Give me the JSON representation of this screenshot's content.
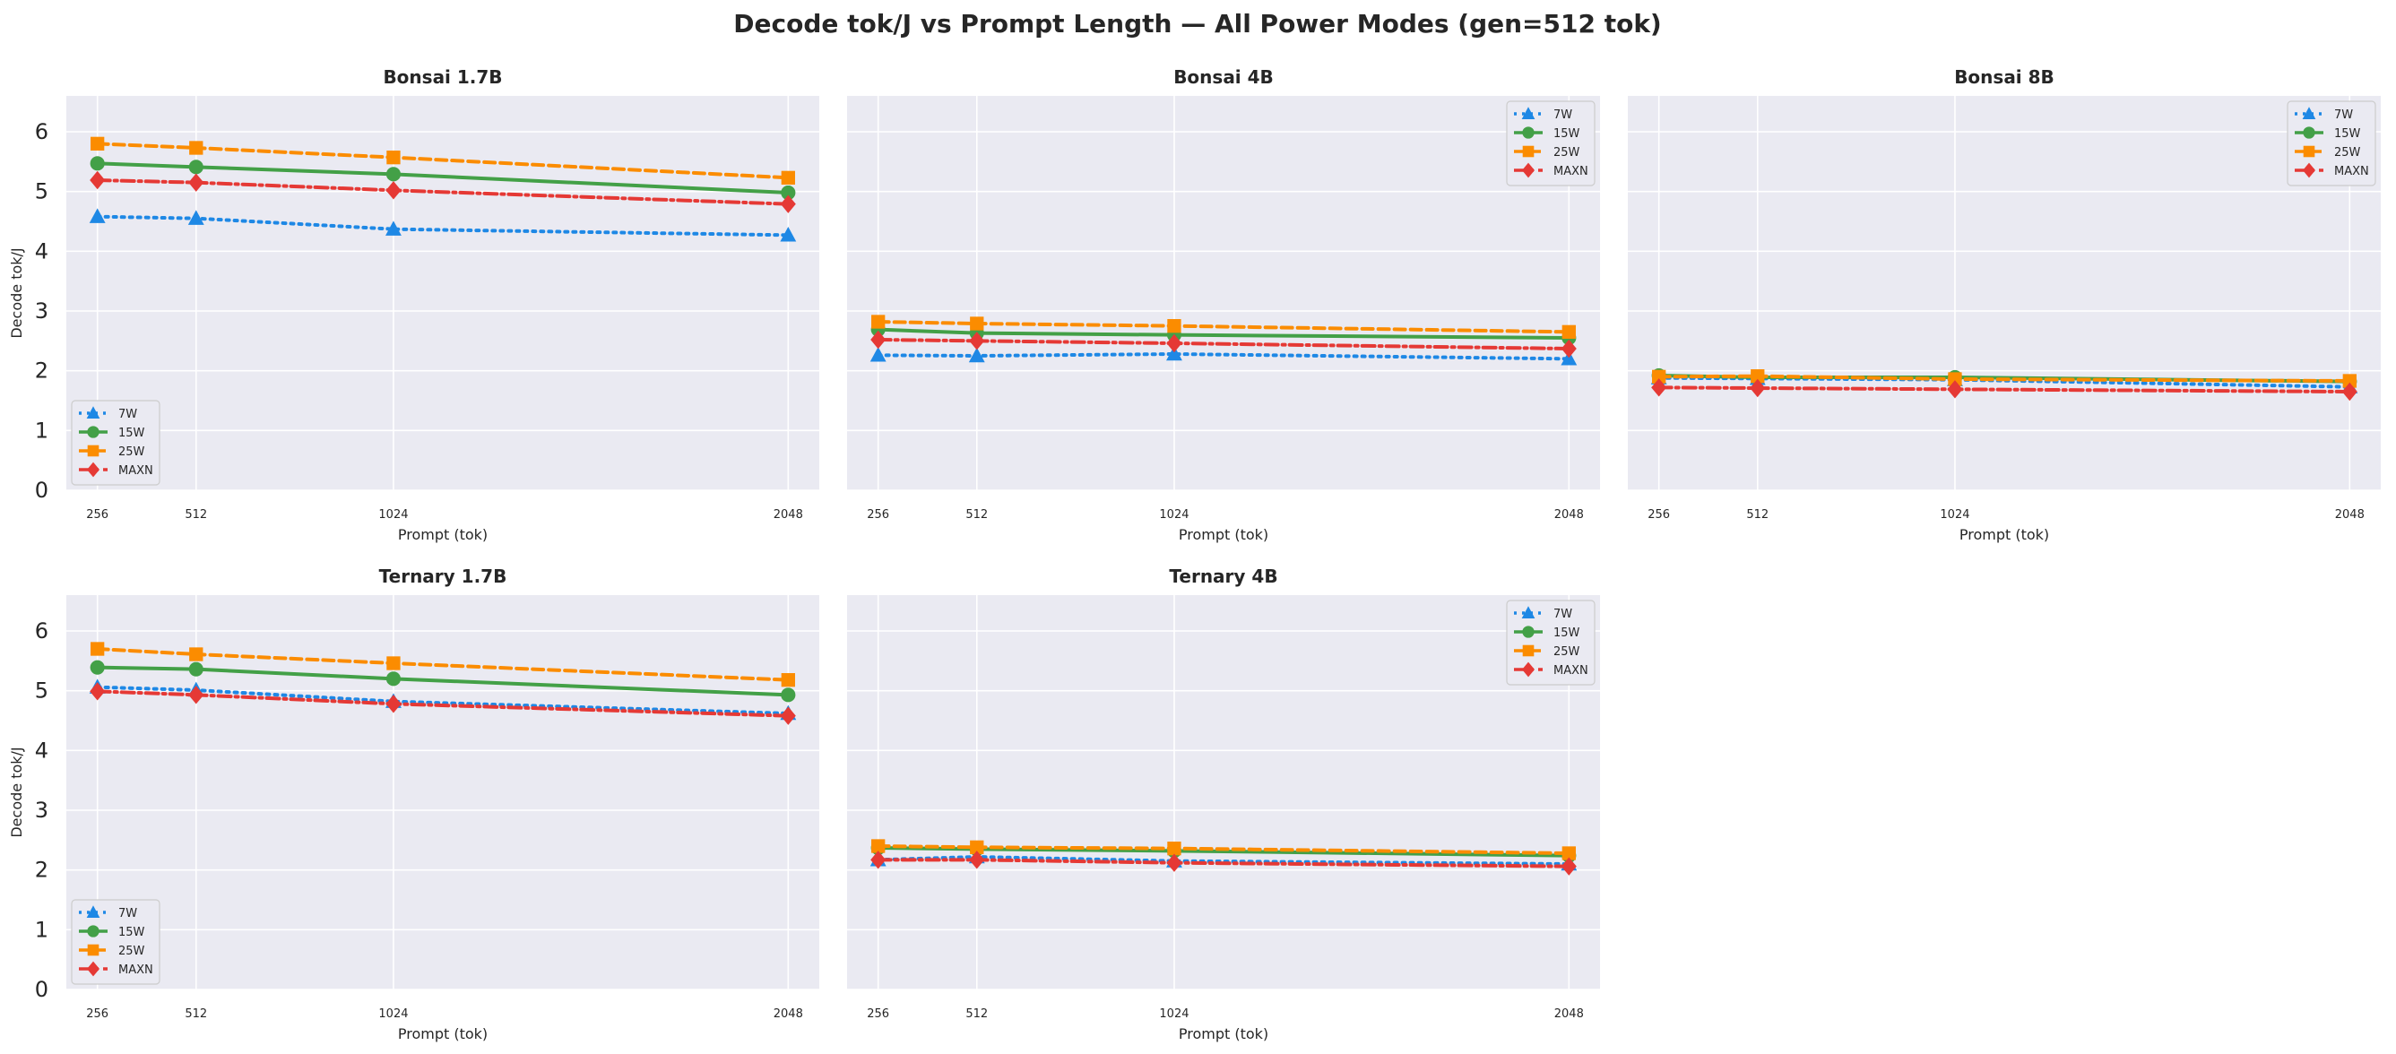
{
  "figure": {
    "title": "Decode tok/J vs Prompt Length — All Power Modes (gen=512 tok)"
  },
  "series_styles": [
    {
      "name": "7W",
      "color": "#1e88e5",
      "marker": "triangle",
      "dash": "dotted"
    },
    {
      "name": "15W",
      "color": "#43a047",
      "marker": "circle",
      "dash": "solid"
    },
    {
      "name": "25W",
      "color": "#fb8c00",
      "marker": "square",
      "dash": "dashed"
    },
    {
      "name": "MAXN",
      "color": "#e53935",
      "marker": "diamond",
      "dash": "dashdot"
    }
  ],
  "chart_data": [
    {
      "type": "line",
      "title": "Bonsai 1.7B",
      "xlabel": "Prompt (tok)",
      "ylabel": "Decode tok/J",
      "x": [
        256,
        512,
        1024,
        2048
      ],
      "ylim": [
        0,
        6.6
      ],
      "yticks": [
        0,
        1,
        2,
        3,
        4,
        5,
        6
      ],
      "legend": "lower-left",
      "grid": true,
      "series": [
        {
          "name": "7W",
          "values": [
            4.58,
            4.55,
            4.37,
            4.27
          ]
        },
        {
          "name": "15W",
          "values": [
            5.47,
            5.41,
            5.29,
            4.98
          ]
        },
        {
          "name": "25W",
          "values": [
            5.8,
            5.73,
            5.57,
            5.23
          ]
        },
        {
          "name": "MAXN",
          "values": [
            5.19,
            5.15,
            5.02,
            4.79
          ]
        }
      ]
    },
    {
      "type": "line",
      "title": "Bonsai 4B",
      "xlabel": "Prompt (tok)",
      "ylabel": "",
      "x": [
        256,
        512,
        1024,
        2048
      ],
      "ylim": [
        0,
        6.6
      ],
      "yticks": [
        0,
        1,
        2,
        3,
        4,
        5,
        6
      ],
      "legend": "upper-right",
      "grid": true,
      "series": [
        {
          "name": "7W",
          "values": [
            2.26,
            2.25,
            2.28,
            2.2
          ]
        },
        {
          "name": "15W",
          "values": [
            2.69,
            2.63,
            2.6,
            2.55
          ]
        },
        {
          "name": "25W",
          "values": [
            2.82,
            2.79,
            2.75,
            2.65
          ]
        },
        {
          "name": "MAXN",
          "values": [
            2.52,
            2.5,
            2.46,
            2.37
          ]
        }
      ]
    },
    {
      "type": "line",
      "title": "Bonsai 8B",
      "xlabel": "Prompt (tok)",
      "ylabel": "",
      "x": [
        256,
        512,
        1024,
        2048
      ],
      "ylim": [
        0,
        6.6
      ],
      "yticks": [
        0,
        1,
        2,
        3,
        4,
        5,
        6
      ],
      "legend": "upper-right",
      "grid": true,
      "series": [
        {
          "name": "7W",
          "values": [
            1.88,
            1.87,
            1.85,
            1.73
          ]
        },
        {
          "name": "15W",
          "values": [
            1.92,
            1.89,
            1.89,
            1.82
          ]
        },
        {
          "name": "25W",
          "values": [
            1.9,
            1.91,
            1.86,
            1.83
          ]
        },
        {
          "name": "MAXN",
          "values": [
            1.72,
            1.71,
            1.69,
            1.65
          ]
        }
      ]
    },
    {
      "type": "line",
      "title": "Ternary 1.7B",
      "xlabel": "Prompt (tok)",
      "ylabel": "Decode tok/J",
      "x": [
        256,
        512,
        1024,
        2048
      ],
      "ylim": [
        0,
        6.6
      ],
      "yticks": [
        0,
        1,
        2,
        3,
        4,
        5,
        6
      ],
      "legend": "lower-left",
      "grid": true,
      "series": [
        {
          "name": "7W",
          "values": [
            5.06,
            5.01,
            4.82,
            4.62
          ]
        },
        {
          "name": "15W",
          "values": [
            5.39,
            5.36,
            5.2,
            4.93
          ]
        },
        {
          "name": "25W",
          "values": [
            5.7,
            5.61,
            5.46,
            5.18
          ]
        },
        {
          "name": "MAXN",
          "values": [
            4.99,
            4.93,
            4.78,
            4.58
          ]
        }
      ]
    },
    {
      "type": "line",
      "title": "Ternary 4B",
      "xlabel": "Prompt (tok)",
      "ylabel": "",
      "x": [
        256,
        512,
        1024,
        2048
      ],
      "ylim": [
        0,
        6.6
      ],
      "yticks": [
        0,
        1,
        2,
        3,
        4,
        5,
        6
      ],
      "legend": "upper-right",
      "grid": true,
      "series": [
        {
          "name": "7W",
          "values": [
            2.17,
            2.22,
            2.15,
            2.1
          ]
        },
        {
          "name": "15W",
          "values": [
            2.37,
            2.35,
            2.32,
            2.24
          ]
        },
        {
          "name": "25W",
          "values": [
            2.4,
            2.38,
            2.36,
            2.28
          ]
        },
        {
          "name": "MAXN",
          "values": [
            2.17,
            2.17,
            2.12,
            2.06
          ]
        }
      ]
    }
  ]
}
